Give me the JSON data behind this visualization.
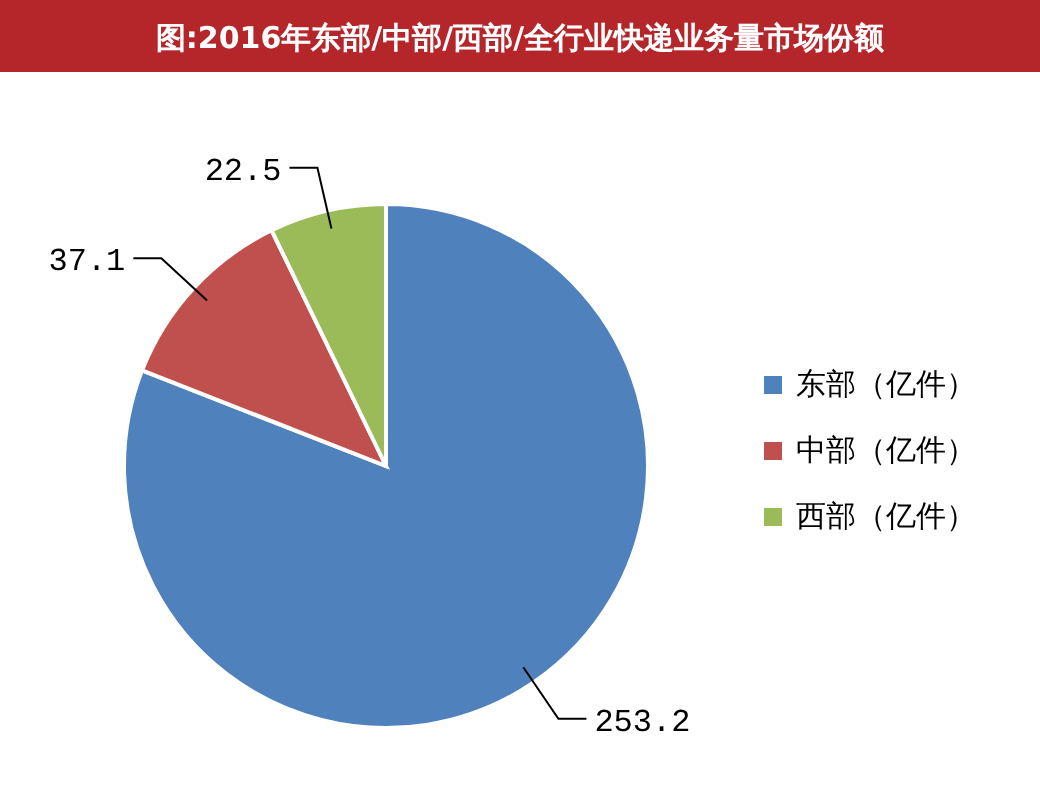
{
  "chart_data": {
    "type": "pie",
    "title": "图:2016年东部/中部/西部/全行业快递业务量市场份额",
    "categories": [
      "东部（亿件）",
      "中部（亿件）",
      "西部（亿件）"
    ],
    "values": [
      253.2,
      37.1,
      22.5
    ],
    "colors": [
      "#4f81bd",
      "#c0504d",
      "#9bbb59"
    ],
    "data_labels": true,
    "legend": "right"
  }
}
